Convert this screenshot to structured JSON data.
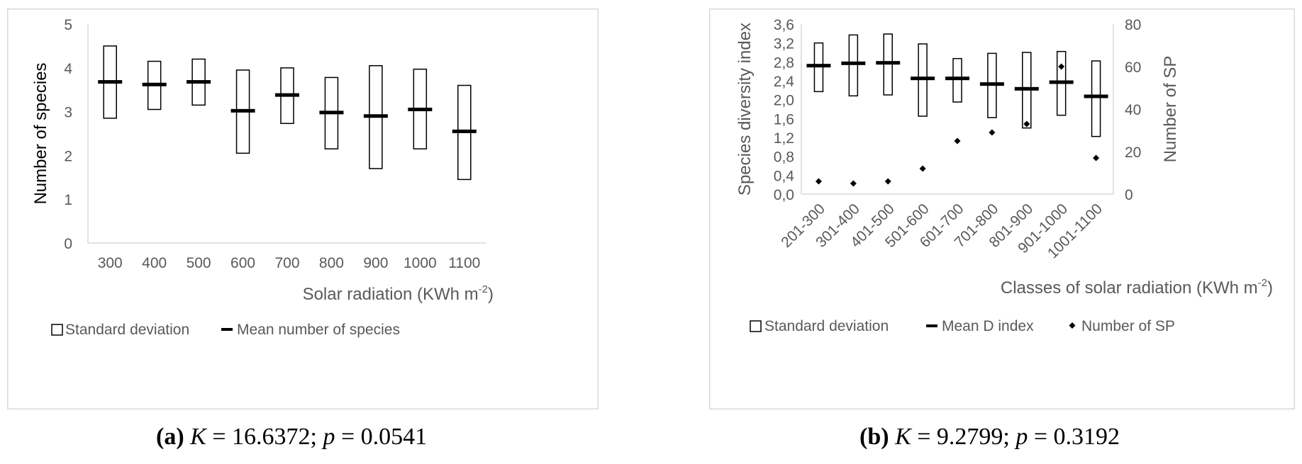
{
  "chart_data": [
    {
      "id": "a",
      "type": "box",
      "ylabel": "Number of species",
      "xlabel": "Solar radiation (KWh m",
      "xlabel_sup": "-2",
      "xlabel_end": ")",
      "ylim": [
        0,
        5
      ],
      "yticks": [
        "0",
        "1",
        "2",
        "3",
        "4",
        "5"
      ],
      "categories": [
        "300",
        "400",
        "500",
        "600",
        "700",
        "800",
        "900",
        "1000",
        "1100"
      ],
      "sd_low": [
        2.85,
        3.05,
        3.15,
        2.05,
        2.73,
        2.15,
        1.7,
        2.15,
        1.45
      ],
      "sd_high": [
        4.5,
        4.15,
        4.2,
        3.95,
        4.0,
        3.78,
        4.05,
        3.97,
        3.6
      ],
      "mean": [
        3.68,
        3.62,
        3.68,
        3.02,
        3.38,
        2.98,
        2.9,
        3.05,
        2.55
      ],
      "legend": [
        "Standard deviation",
        "Mean number of species"
      ]
    },
    {
      "id": "b",
      "type": "box",
      "ylabel": "Species diversity  index",
      "y2label": "Number of SP",
      "xlabel": "Classes of solar radiation (KWh m",
      "xlabel_sup": "-2",
      "xlabel_end": ")",
      "ylim": [
        0,
        3.6
      ],
      "yticks": [
        "0,0",
        "0,4",
        "0,8",
        "1,2",
        "1,6",
        "2,0",
        "2,4",
        "2,8",
        "3,2",
        "3,6"
      ],
      "y2lim": [
        0,
        80
      ],
      "y2ticks": [
        "0",
        "20",
        "40",
        "60",
        "80"
      ],
      "categories": [
        "201-300",
        "301-400",
        "401-500",
        "501-600",
        "601-700",
        "701-800",
        "801-900",
        "901-1000",
        "1001-1100"
      ],
      "sd_low": [
        2.17,
        2.08,
        2.1,
        1.65,
        1.95,
        1.62,
        1.4,
        1.67,
        1.22
      ],
      "sd_high": [
        3.2,
        3.37,
        3.39,
        3.18,
        2.87,
        2.98,
        3.0,
        3.02,
        2.82
      ],
      "mean": [
        2.72,
        2.77,
        2.78,
        2.45,
        2.45,
        2.33,
        2.23,
        2.37,
        2.07
      ],
      "count": [
        6,
        5,
        6,
        12,
        25,
        29,
        33,
        60,
        17
      ],
      "legend": [
        "Standard deviation",
        "Mean D index",
        "Number of SP"
      ]
    }
  ],
  "captions": {
    "a": {
      "label": "(a)",
      "stat_k": "K",
      "k_text": " = 16.6372; ",
      "stat_p": "p",
      "p_text": " = 0.0541"
    },
    "b": {
      "label": "(b)",
      "stat_k": "K",
      "k_text": " = 9.2799; ",
      "stat_p": "p",
      "p_text": " = 0.3192"
    }
  }
}
